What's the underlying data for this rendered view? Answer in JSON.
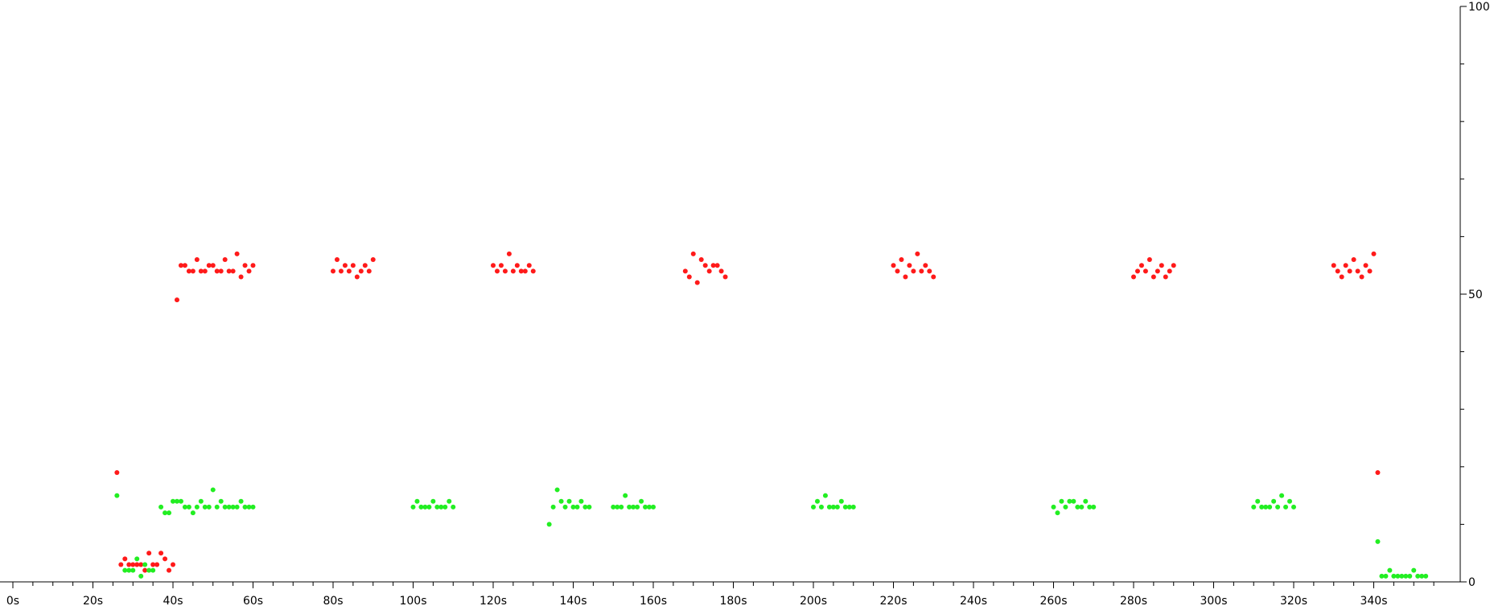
{
  "chart_data": {
    "type": "scatter",
    "title": "",
    "xlabel": "",
    "ylabel": "",
    "xlim": [
      0,
      357
    ],
    "ylim": [
      0,
      100
    ],
    "grid": false,
    "x_ticks": [
      "0s",
      "20s",
      "40s",
      "60s",
      "80s",
      "100s",
      "120s",
      "140s",
      "160s",
      "180s",
      "200s",
      "220s",
      "240s",
      "260s",
      "280s",
      "300s",
      "320s",
      "340s"
    ],
    "x_tick_values": [
      0,
      20,
      40,
      60,
      80,
      100,
      120,
      140,
      160,
      180,
      200,
      220,
      240,
      260,
      280,
      300,
      320,
      340
    ],
    "y_ticks": [
      "0",
      "50",
      "100"
    ],
    "y_tick_values": [
      0,
      50,
      100
    ],
    "series": [
      {
        "name": "red",
        "color": "#ff1a1a",
        "x": [
          26,
          27,
          28,
          29,
          30,
          31,
          32,
          33,
          34,
          35,
          36,
          37,
          38,
          39,
          40,
          41,
          42,
          43,
          44,
          45,
          46,
          47,
          48,
          49,
          50,
          51,
          52,
          53,
          54,
          55,
          56,
          57,
          58,
          59,
          60,
          80,
          81,
          82,
          83,
          84,
          85,
          86,
          87,
          88,
          89,
          90,
          120,
          121,
          122,
          123,
          124,
          125,
          126,
          127,
          128,
          129,
          130,
          168,
          169,
          170,
          171,
          172,
          173,
          174,
          175,
          176,
          177,
          178,
          220,
          221,
          222,
          223,
          224,
          225,
          226,
          227,
          228,
          229,
          230,
          280,
          281,
          282,
          283,
          284,
          285,
          286,
          287,
          288,
          289,
          290,
          330,
          331,
          332,
          333,
          334,
          335,
          336,
          337,
          338,
          339,
          340,
          341
        ],
        "y": [
          19,
          3,
          4,
          3,
          3,
          3,
          3,
          2,
          5,
          3,
          3,
          5,
          4,
          2,
          3,
          49,
          55,
          55,
          54,
          54,
          56,
          54,
          54,
          55,
          55,
          54,
          54,
          56,
          54,
          54,
          57,
          53,
          55,
          54,
          55,
          54,
          56,
          54,
          55,
          54,
          55,
          53,
          54,
          55,
          54,
          56,
          55,
          54,
          55,
          54,
          57,
          54,
          55,
          54,
          54,
          55,
          54,
          54,
          53,
          57,
          52,
          56,
          55,
          54,
          55,
          55,
          54,
          53,
          55,
          54,
          56,
          53,
          55,
          54,
          57,
          54,
          55,
          54,
          53,
          53,
          54,
          55,
          54,
          56,
          53,
          54,
          55,
          53,
          54,
          55,
          55,
          54,
          53,
          55,
          54,
          56,
          54,
          53,
          55,
          54,
          57,
          19
        ]
      },
      {
        "name": "green",
        "color": "#22ee22",
        "x": [
          26,
          28,
          29,
          30,
          31,
          32,
          33,
          34,
          35,
          37,
          38,
          39,
          40,
          41,
          42,
          43,
          44,
          45,
          46,
          47,
          48,
          49,
          50,
          51,
          52,
          53,
          54,
          55,
          56,
          57,
          58,
          59,
          60,
          100,
          101,
          102,
          103,
          104,
          105,
          106,
          107,
          108,
          109,
          110,
          134,
          135,
          136,
          137,
          138,
          139,
          140,
          141,
          142,
          143,
          144,
          150,
          151,
          152,
          153,
          154,
          155,
          156,
          157,
          158,
          159,
          160,
          200,
          201,
          202,
          203,
          204,
          205,
          206,
          207,
          208,
          209,
          210,
          260,
          261,
          262,
          263,
          264,
          265,
          266,
          267,
          268,
          269,
          270,
          310,
          311,
          312,
          313,
          314,
          315,
          316,
          317,
          318,
          319,
          320,
          341,
          342,
          343,
          344,
          345,
          346,
          347,
          348,
          349,
          350,
          351,
          352,
          353
        ],
        "y": [
          15,
          2,
          2,
          2,
          4,
          1,
          3,
          2,
          2,
          13,
          12,
          12,
          14,
          14,
          14,
          13,
          13,
          12,
          13,
          14,
          13,
          13,
          16,
          13,
          14,
          13,
          13,
          13,
          13,
          14,
          13,
          13,
          13,
          13,
          14,
          13,
          13,
          13,
          14,
          13,
          13,
          13,
          14,
          13,
          10,
          13,
          16,
          14,
          13,
          14,
          13,
          13,
          14,
          13,
          13,
          13,
          13,
          13,
          15,
          13,
          13,
          13,
          14,
          13,
          13,
          13,
          13,
          14,
          13,
          15,
          13,
          13,
          13,
          14,
          13,
          13,
          13,
          13,
          12,
          14,
          13,
          14,
          14,
          13,
          13,
          14,
          13,
          13,
          13,
          14,
          13,
          13,
          13,
          14,
          13,
          15,
          13,
          14,
          13,
          7,
          1,
          1,
          2,
          1,
          1,
          1,
          1,
          1,
          2,
          1,
          1,
          1
        ]
      }
    ]
  }
}
